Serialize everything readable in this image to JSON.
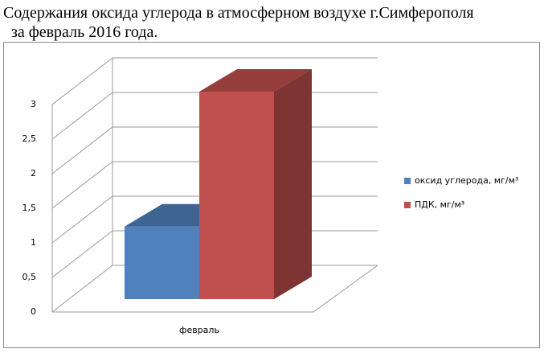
{
  "chart_data": {
    "type": "bar3d",
    "title": "Содержания оксида углерода в атмосферном воздухе г.Симферополя",
    "subtitle": "за февраль 2016 года.",
    "categories": [
      "февраль"
    ],
    "series": [
      {
        "name": "оксид углерода, мг/м³",
        "color": "#4f81bd",
        "values": [
          1.05
        ]
      },
      {
        "name": "ПДК, мг/м³",
        "color": "#c0504d",
        "values": [
          3
        ]
      }
    ],
    "ylim": [
      0,
      3
    ],
    "yticks": [
      0,
      {
        "value": 0.5,
        "label": "0,5"
      },
      1,
      {
        "value": 1.5,
        "label": "1,5"
      },
      2,
      {
        "value": 2.5,
        "label": "2,5"
      },
      3
    ],
    "grid": true,
    "legend": "right"
  }
}
